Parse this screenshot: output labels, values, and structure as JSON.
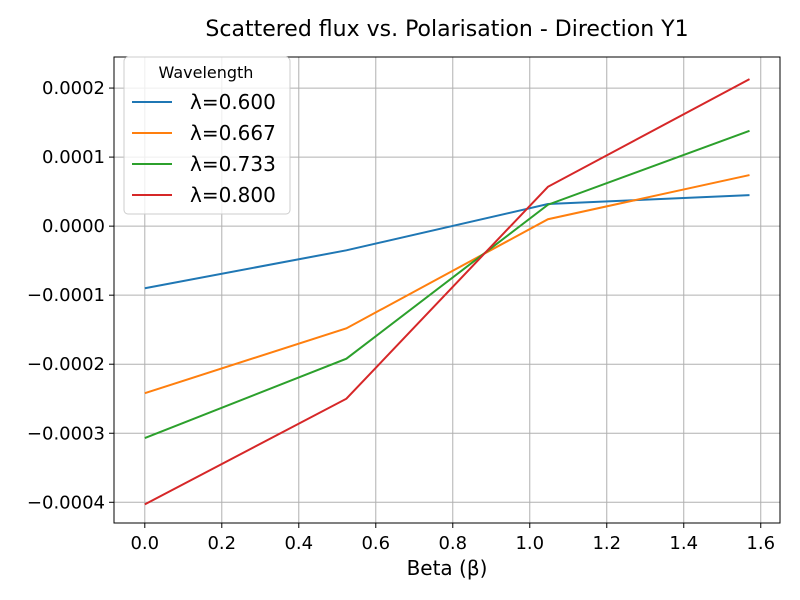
{
  "chart_data": {
    "type": "line",
    "title": "Scattered flux vs. Polarisation - Direction Y1",
    "xlabel": "Beta (β)",
    "ylabel": "",
    "xlim": [
      -0.08,
      1.65
    ],
    "ylim": [
      -0.00043,
      0.000245
    ],
    "x_ticks": [
      0.0,
      0.2,
      0.4,
      0.6,
      0.8,
      1.0,
      1.2,
      1.4,
      1.6
    ],
    "x_tick_labels": [
      "0.0",
      "0.2",
      "0.4",
      "0.6",
      "0.8",
      "1.0",
      "1.2",
      "1.4",
      "1.6"
    ],
    "y_ticks": [
      -0.0004,
      -0.0003,
      -0.0002,
      -0.0001,
      0.0,
      0.0001,
      0.0002
    ],
    "y_tick_labels": [
      "−0.0004",
      "−0.0003",
      "−0.0002",
      "−0.0001",
      "0.0000",
      "0.0001",
      "0.0002"
    ],
    "grid": true,
    "legend": {
      "title": "Wavelength",
      "position": "top-left"
    },
    "x": [
      0.0,
      0.5236,
      1.0472,
      1.5708
    ],
    "series": [
      {
        "name": "λ=0.600",
        "color": "#1f77b4",
        "values": [
          -9e-05,
          -3.5e-05,
          3.2e-05,
          4.5e-05
        ]
      },
      {
        "name": "λ=0.667",
        "color": "#ff7f0e",
        "values": [
          -0.000242,
          -0.000148,
          1e-05,
          7.4e-05
        ]
      },
      {
        "name": "λ=0.733",
        "color": "#2ca02c",
        "values": [
          -0.000307,
          -0.000192,
          3.1e-05,
          0.000138
        ]
      },
      {
        "name": "λ=0.800",
        "color": "#d62728",
        "values": [
          -0.000403,
          -0.00025,
          5.7e-05,
          0.000213
        ]
      }
    ]
  }
}
